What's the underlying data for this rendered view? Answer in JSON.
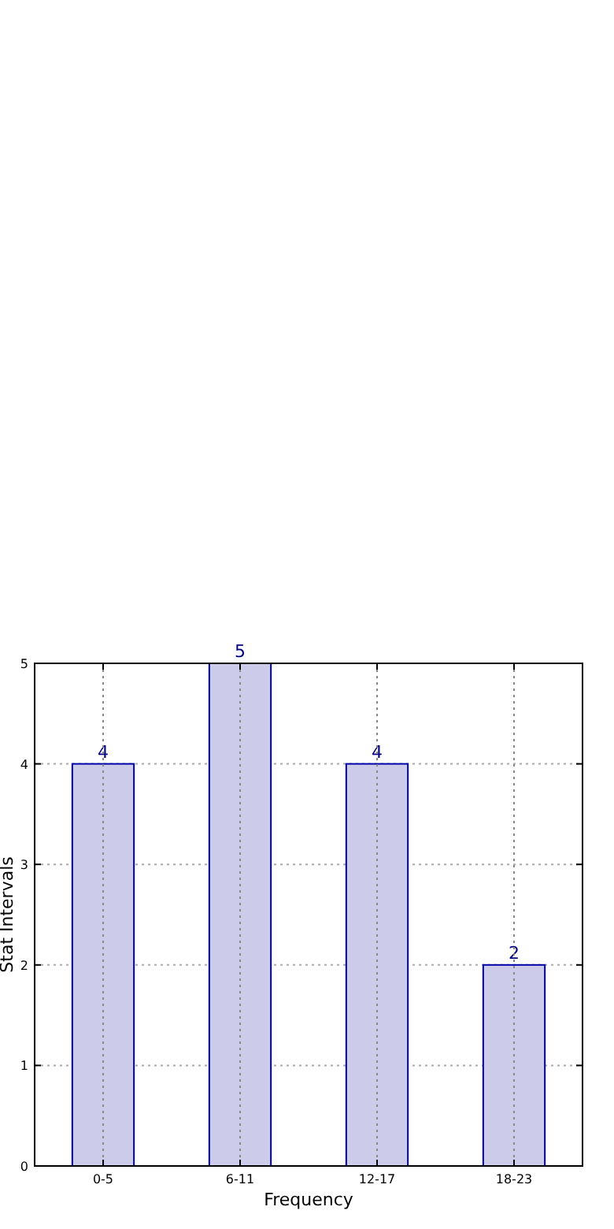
{
  "chart_data": {
    "type": "bar",
    "xlabel": "Frequency",
    "ylabel": "Stat Intervals",
    "categories": [
      "0-5",
      "6-11",
      "12-17",
      "18-23"
    ],
    "values": [
      4,
      5,
      4,
      2
    ],
    "color": "#ccccea",
    "ylim": [
      0,
      5
    ],
    "yticks": [
      0,
      1,
      2,
      3,
      4,
      5
    ],
    "grid": true,
    "data_labels": true
  }
}
